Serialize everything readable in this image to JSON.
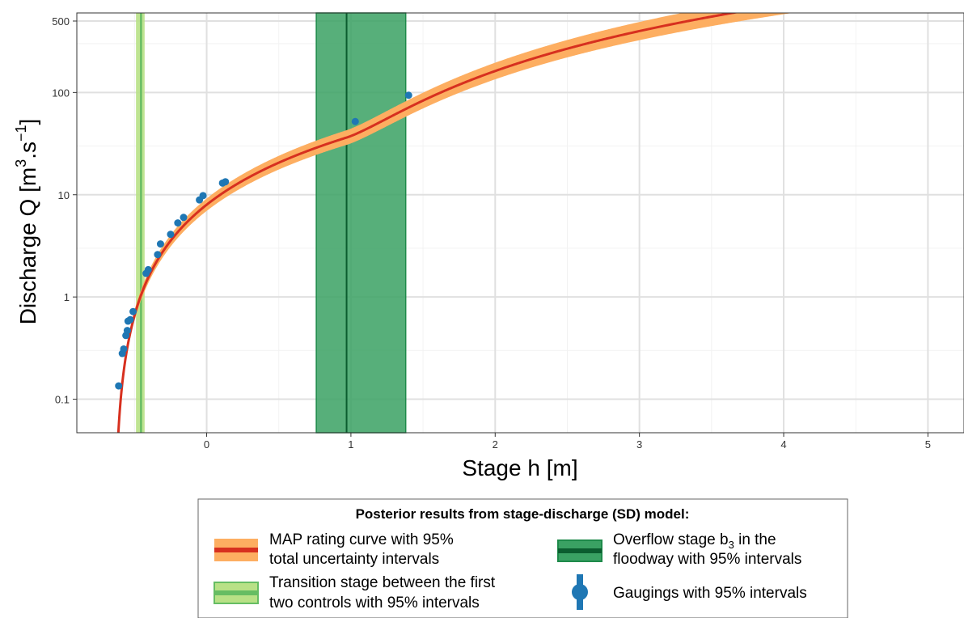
{
  "chart_data": {
    "type": "line",
    "xlabel": "Stage h [m]",
    "ylabel_main": "Discharge Q [m",
    "ylabel_sup1": "3",
    "ylabel_mid": ".s",
    "ylabel_sup2": "−1",
    "ylabel_end": "]",
    "xlim": [
      -0.9,
      5.25
    ],
    "ylim": [
      0.047,
      600
    ],
    "y_scale": "log",
    "grid": true,
    "x_ticks": [
      {
        "value": 0,
        "label": "0"
      },
      {
        "value": 1,
        "label": "1"
      },
      {
        "value": 2,
        "label": "2"
      },
      {
        "value": 3,
        "label": "3"
      },
      {
        "value": 4,
        "label": "4"
      },
      {
        "value": 5,
        "label": "5"
      }
    ],
    "y_ticks": [
      {
        "value": 0.1,
        "label": "0.1"
      },
      {
        "value": 1,
        "label": "1"
      },
      {
        "value": 10,
        "label": "10"
      },
      {
        "value": 100,
        "label": "100"
      },
      {
        "value": 500,
        "label": "500"
      }
    ],
    "rating_curve": {
      "name": "MAP rating curve",
      "color": "#d7301f",
      "band_color": "#fdae61",
      "b1": -0.64,
      "b3": 0.97,
      "a1": 16.6,
      "c1": 1.64,
      "a2": 76.6,
      "c2": 1.73,
      "band_log_halfwidth": 0.08
    },
    "transition_stage": {
      "value": -0.455,
      "low": -0.49,
      "high": -0.43,
      "color": "#b8e186",
      "line_color": "#66bd63"
    },
    "overflow_stage": {
      "value": 0.97,
      "low": 0.76,
      "high": 1.38,
      "color": "#3aa163",
      "line_color": "#0b5d2f"
    },
    "gaugings": {
      "color": "#1f77b4",
      "points": [
        {
          "x": -0.61,
          "y": 0.135
        },
        {
          "x": -0.585,
          "y": 0.28
        },
        {
          "x": -0.575,
          "y": 0.31
        },
        {
          "x": -0.56,
          "y": 0.42
        },
        {
          "x": -0.55,
          "y": 0.47
        },
        {
          "x": -0.545,
          "y": 0.58
        },
        {
          "x": -0.53,
          "y": 0.6
        },
        {
          "x": -0.51,
          "y": 0.72
        },
        {
          "x": -0.42,
          "y": 1.7
        },
        {
          "x": -0.405,
          "y": 1.85
        },
        {
          "x": -0.34,
          "y": 2.6
        },
        {
          "x": -0.32,
          "y": 3.3
        },
        {
          "x": -0.25,
          "y": 4.1
        },
        {
          "x": -0.2,
          "y": 5.3
        },
        {
          "x": -0.16,
          "y": 6.0
        },
        {
          "x": -0.05,
          "y": 8.9
        },
        {
          "x": -0.025,
          "y": 9.8
        },
        {
          "x": 0.11,
          "y": 13.0
        },
        {
          "x": 0.13,
          "y": 13.4
        },
        {
          "x": 1.03,
          "y": 52
        },
        {
          "x": 1.4,
          "y": 94
        }
      ]
    }
  },
  "legend": {
    "title": "Posterior results from stage-discharge (SD) model:",
    "items": [
      {
        "line1": "MAP rating curve with 95%",
        "line2": "total uncertainty intervals"
      },
      {
        "line1": "Transition stage between the first",
        "line2": "two controls with 95% intervals"
      },
      {
        "line1_pre": "Overflow stage b",
        "line1_sub": "3",
        "line1_post": " in the",
        "line2": "floodway with 95% intervals"
      },
      {
        "line1": "Gaugings with 95% intervals"
      }
    ]
  }
}
